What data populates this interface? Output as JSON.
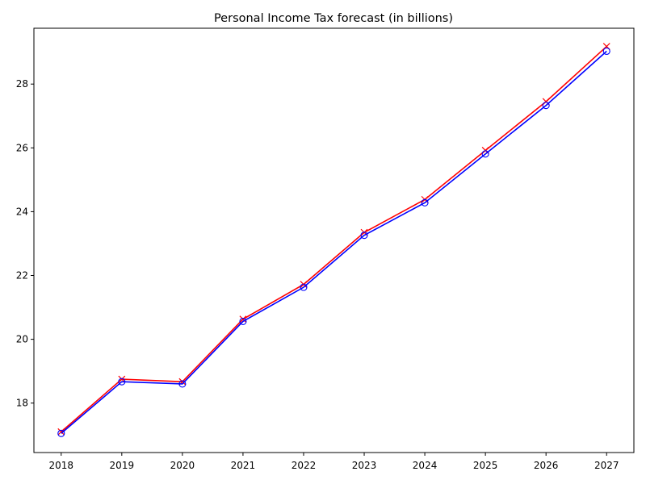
{
  "chart_data": {
    "type": "line",
    "title": "Personal Income Tax forecast (in billions)",
    "xlabel": "",
    "ylabel": "",
    "x": [
      2018,
      2019,
      2020,
      2021,
      2022,
      2023,
      2024,
      2025,
      2026,
      2027
    ],
    "xlim": [
      2017.55,
      2027.45
    ],
    "ylim": [
      16.45,
      29.75
    ],
    "yticks": [
      18,
      20,
      22,
      24,
      26,
      28
    ],
    "grid": false,
    "legend": "none",
    "series": [
      {
        "values": [
          17.1,
          18.75,
          18.67,
          20.63,
          21.72,
          23.35,
          24.38,
          25.92,
          27.45,
          29.18
        ],
        "color": "#ff0000",
        "marker": "x"
      },
      {
        "values": [
          17.05,
          18.67,
          18.6,
          20.56,
          21.63,
          23.26,
          24.28,
          25.81,
          27.33,
          29.03
        ],
        "color": "#0000ff",
        "marker": "o"
      }
    ]
  }
}
